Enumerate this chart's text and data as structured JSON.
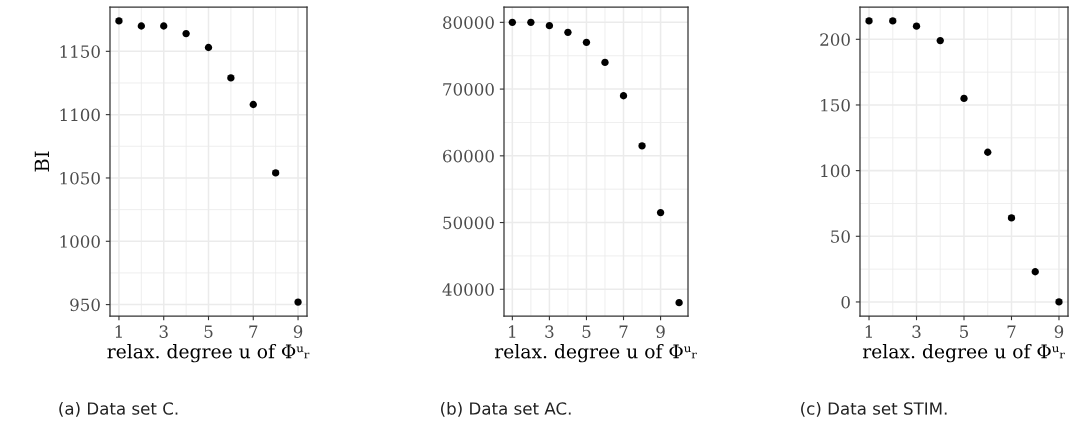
{
  "chart_data": [
    {
      "type": "scatter",
      "title": "(a) Data set C.",
      "xlabel": "relax. degree u of Φᵘᵣ",
      "ylabel": "BI",
      "x": [
        1,
        2,
        3,
        4,
        5,
        6,
        7,
        8,
        9
      ],
      "values": [
        1174,
        1170,
        1170,
        1164,
        1153,
        1129,
        1108,
        1054,
        952
      ],
      "color": "#000000",
      "xlim": [
        0.6,
        9.4
      ],
      "ylim": [
        941,
        1185
      ],
      "xticks": [
        1,
        3,
        5,
        7,
        9
      ],
      "yticks": [
        950,
        1000,
        1050,
        1100,
        1150
      ],
      "grid": true,
      "marker": "circle"
    },
    {
      "type": "scatter",
      "title": "(b) Data set AC.",
      "xlabel": "relax. degree u of Φᵘᵣ",
      "x": [
        1,
        2,
        3,
        4,
        5,
        6,
        7,
        8,
        9,
        10
      ],
      "values": [
        80000,
        80000,
        79500,
        78500,
        77000,
        74000,
        69000,
        61500,
        51500,
        38000
      ],
      "color": "#000000",
      "xlim": [
        0.55,
        10.48
      ],
      "ylim": [
        36000,
        82300
      ],
      "xticks": [
        1,
        3,
        5,
        7,
        9
      ],
      "yticks": [
        40000,
        50000,
        60000,
        70000,
        80000
      ],
      "grid": true,
      "marker": "circle"
    },
    {
      "type": "scatter",
      "title": "(c) Data set STIM.",
      "xlabel": "relax. degree u of Φᵘᵣ",
      "x": [
        1,
        2,
        3,
        4,
        5,
        6,
        7,
        8,
        9
      ],
      "values": [
        214,
        214,
        210,
        199,
        155,
        114,
        64,
        23,
        0
      ],
      "color": "#000000",
      "xlim": [
        0.62,
        9.38
      ],
      "ylim": [
        -10.7,
        224.6
      ],
      "xticks": [
        1,
        3,
        5,
        7,
        9
      ],
      "yticks": [
        0,
        50,
        100,
        150,
        200
      ],
      "grid": true,
      "marker": "circle"
    }
  ]
}
